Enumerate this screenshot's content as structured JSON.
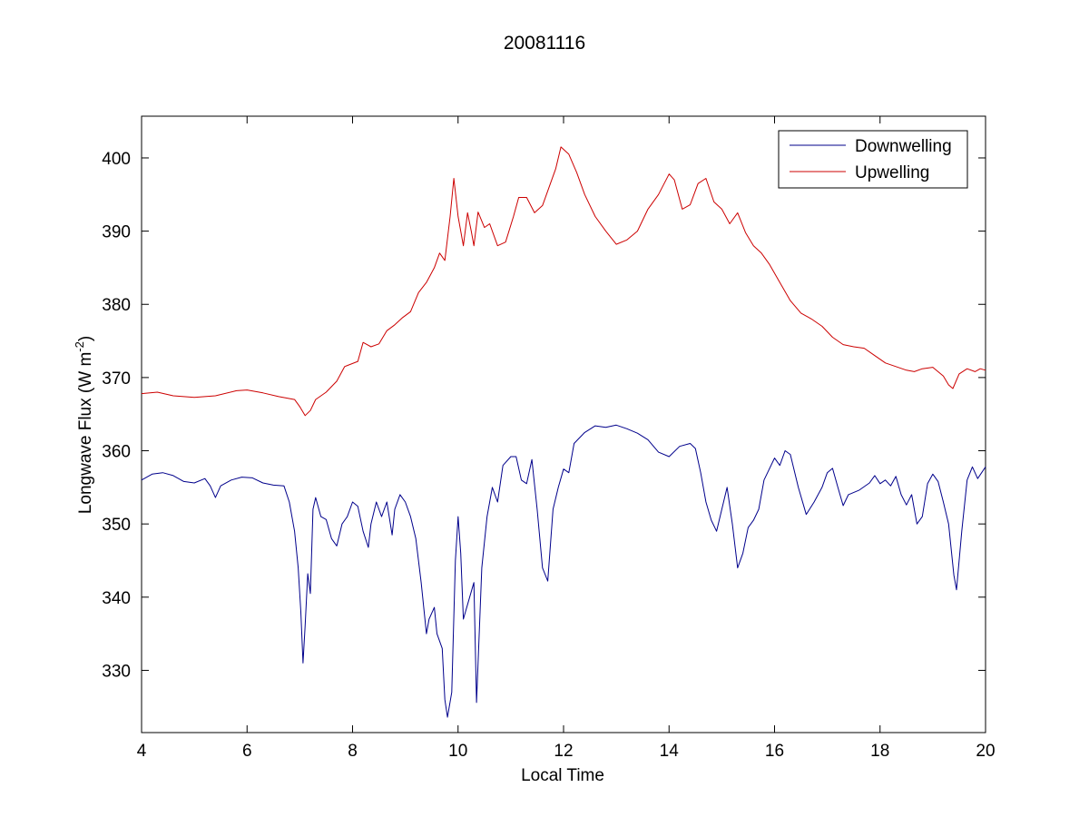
{
  "chart_data": {
    "type": "line",
    "title": "20081116",
    "xlabel": "Local Time",
    "ylabel_main": "Longwave Flux (W m",
    "ylabel_sup": "-2",
    "ylabel_close": ")",
    "xlim": [
      4,
      20
    ],
    "ylim": [
      321.5,
      405.7
    ],
    "xticks": [
      4,
      6,
      8,
      10,
      12,
      14,
      16,
      18,
      20
    ],
    "yticks": [
      330,
      340,
      350,
      360,
      370,
      380,
      390,
      400
    ],
    "grid": false,
    "legend_position": "top-right",
    "series": [
      {
        "name": "Downwelling",
        "color": "#00008b",
        "points": [
          [
            4.0,
            356
          ],
          [
            4.2,
            356.8
          ],
          [
            4.4,
            357
          ],
          [
            4.6,
            356.6
          ],
          [
            4.8,
            355.8
          ],
          [
            5.0,
            355.6
          ],
          [
            5.2,
            356.2
          ],
          [
            5.3,
            355.2
          ],
          [
            5.4,
            353.6
          ],
          [
            5.5,
            355.2
          ],
          [
            5.7,
            356
          ],
          [
            5.9,
            356.4
          ],
          [
            6.1,
            356.3
          ],
          [
            6.3,
            355.6
          ],
          [
            6.5,
            355.3
          ],
          [
            6.7,
            355.2
          ],
          [
            6.8,
            353
          ],
          [
            6.9,
            349
          ],
          [
            6.97,
            344
          ],
          [
            7.02,
            338
          ],
          [
            7.06,
            331
          ],
          [
            7.1,
            336
          ],
          [
            7.15,
            343.2
          ],
          [
            7.2,
            340.5
          ],
          [
            7.25,
            352
          ],
          [
            7.3,
            353.6
          ],
          [
            7.4,
            351
          ],
          [
            7.5,
            350.6
          ],
          [
            7.6,
            348
          ],
          [
            7.7,
            347
          ],
          [
            7.8,
            350
          ],
          [
            7.9,
            351
          ],
          [
            8.0,
            353
          ],
          [
            8.1,
            352.4
          ],
          [
            8.2,
            349
          ],
          [
            8.3,
            346.8
          ],
          [
            8.35,
            350
          ],
          [
            8.45,
            353
          ],
          [
            8.55,
            351
          ],
          [
            8.65,
            353
          ],
          [
            8.75,
            348.5
          ],
          [
            8.8,
            352
          ],
          [
            8.9,
            354
          ],
          [
            9.0,
            353
          ],
          [
            9.1,
            351
          ],
          [
            9.2,
            348
          ],
          [
            9.3,
            342
          ],
          [
            9.4,
            335
          ],
          [
            9.45,
            337
          ],
          [
            9.55,
            338.6
          ],
          [
            9.6,
            335
          ],
          [
            9.7,
            333
          ],
          [
            9.75,
            326
          ],
          [
            9.8,
            323.6
          ],
          [
            9.88,
            327
          ],
          [
            9.95,
            345
          ],
          [
            10.0,
            351
          ],
          [
            10.05,
            346
          ],
          [
            10.1,
            337
          ],
          [
            10.2,
            339.5
          ],
          [
            10.3,
            342
          ],
          [
            10.35,
            325.6
          ],
          [
            10.45,
            344
          ],
          [
            10.55,
            351
          ],
          [
            10.65,
            355
          ],
          [
            10.75,
            353
          ],
          [
            10.85,
            358
          ],
          [
            11.0,
            359.2
          ],
          [
            11.1,
            359.2
          ],
          [
            11.2,
            356
          ],
          [
            11.3,
            355.5
          ],
          [
            11.4,
            358.8
          ],
          [
            11.5,
            352
          ],
          [
            11.6,
            344
          ],
          [
            11.7,
            342.2
          ],
          [
            11.8,
            352
          ],
          [
            11.9,
            355
          ],
          [
            12.0,
            357.5
          ],
          [
            12.1,
            357
          ],
          [
            12.2,
            361
          ],
          [
            12.4,
            362.5
          ],
          [
            12.6,
            363.4
          ],
          [
            12.8,
            363.2
          ],
          [
            13.0,
            363.5
          ],
          [
            13.2,
            363
          ],
          [
            13.4,
            362.4
          ],
          [
            13.6,
            361.5
          ],
          [
            13.8,
            359.8
          ],
          [
            14.0,
            359.2
          ],
          [
            14.2,
            360.6
          ],
          [
            14.4,
            361
          ],
          [
            14.5,
            360.3
          ],
          [
            14.6,
            357
          ],
          [
            14.7,
            353
          ],
          [
            14.8,
            350.5
          ],
          [
            14.9,
            349
          ],
          [
            15.0,
            352
          ],
          [
            15.1,
            355
          ],
          [
            15.2,
            350
          ],
          [
            15.3,
            344
          ],
          [
            15.4,
            346
          ],
          [
            15.5,
            349.5
          ],
          [
            15.6,
            350.5
          ],
          [
            15.7,
            352
          ],
          [
            15.8,
            356
          ],
          [
            16.0,
            359
          ],
          [
            16.1,
            358
          ],
          [
            16.2,
            360
          ],
          [
            16.3,
            359.5
          ],
          [
            16.45,
            355
          ],
          [
            16.6,
            351.3
          ],
          [
            16.75,
            353
          ],
          [
            16.9,
            355
          ],
          [
            17.0,
            357
          ],
          [
            17.1,
            357.6
          ],
          [
            17.2,
            355
          ],
          [
            17.3,
            352.5
          ],
          [
            17.4,
            354
          ],
          [
            17.6,
            354.6
          ],
          [
            17.8,
            355.6
          ],
          [
            17.9,
            356.6
          ],
          [
            18.0,
            355.5
          ],
          [
            18.1,
            356
          ],
          [
            18.2,
            355.2
          ],
          [
            18.3,
            356.5
          ],
          [
            18.4,
            354
          ],
          [
            18.5,
            352.6
          ],
          [
            18.6,
            354
          ],
          [
            18.7,
            350
          ],
          [
            18.8,
            351
          ],
          [
            18.9,
            355.5
          ],
          [
            19.0,
            356.8
          ],
          [
            19.1,
            355.8
          ],
          [
            19.2,
            353
          ],
          [
            19.3,
            350
          ],
          [
            19.4,
            343
          ],
          [
            19.45,
            341
          ],
          [
            19.55,
            349
          ],
          [
            19.65,
            356
          ],
          [
            19.75,
            357.8
          ],
          [
            19.85,
            356.2
          ],
          [
            20.0,
            357.8
          ]
        ]
      },
      {
        "name": "Upwelling",
        "color": "#cc0000",
        "points": [
          [
            4.0,
            367.8
          ],
          [
            4.3,
            368
          ],
          [
            4.6,
            367.5
          ],
          [
            5.0,
            367.3
          ],
          [
            5.4,
            367.5
          ],
          [
            5.8,
            368.2
          ],
          [
            6.0,
            368.3
          ],
          [
            6.3,
            367.9
          ],
          [
            6.6,
            367.4
          ],
          [
            6.9,
            367
          ],
          [
            7.0,
            366
          ],
          [
            7.1,
            364.8
          ],
          [
            7.2,
            365.5
          ],
          [
            7.3,
            367
          ],
          [
            7.5,
            368
          ],
          [
            7.7,
            369.5
          ],
          [
            7.85,
            371.5
          ],
          [
            8.1,
            372.2
          ],
          [
            8.2,
            374.8
          ],
          [
            8.35,
            374.2
          ],
          [
            8.5,
            374.6
          ],
          [
            8.65,
            376.4
          ],
          [
            8.8,
            377.2
          ],
          [
            8.95,
            378.2
          ],
          [
            9.1,
            379
          ],
          [
            9.25,
            381.6
          ],
          [
            9.4,
            383
          ],
          [
            9.55,
            385
          ],
          [
            9.65,
            387
          ],
          [
            9.75,
            386
          ],
          [
            9.85,
            392
          ],
          [
            9.92,
            397.2
          ],
          [
            10.0,
            392
          ],
          [
            10.1,
            388
          ],
          [
            10.18,
            392.5
          ],
          [
            10.25,
            390
          ],
          [
            10.3,
            388
          ],
          [
            10.38,
            392.6
          ],
          [
            10.5,
            390.5
          ],
          [
            10.6,
            391
          ],
          [
            10.75,
            388
          ],
          [
            10.9,
            388.5
          ],
          [
            11.05,
            392
          ],
          [
            11.15,
            394.6
          ],
          [
            11.3,
            394.6
          ],
          [
            11.45,
            392.5
          ],
          [
            11.6,
            393.5
          ],
          [
            11.75,
            396.5
          ],
          [
            11.85,
            398.5
          ],
          [
            11.95,
            401.5
          ],
          [
            12.1,
            400.5
          ],
          [
            12.25,
            398
          ],
          [
            12.4,
            395
          ],
          [
            12.6,
            392
          ],
          [
            12.8,
            390
          ],
          [
            13.0,
            388.2
          ],
          [
            13.2,
            388.8
          ],
          [
            13.4,
            390
          ],
          [
            13.6,
            393
          ],
          [
            13.8,
            395
          ],
          [
            14.0,
            397.8
          ],
          [
            14.1,
            397
          ],
          [
            14.25,
            393
          ],
          [
            14.4,
            393.6
          ],
          [
            14.55,
            396.5
          ],
          [
            14.7,
            397.2
          ],
          [
            14.85,
            394
          ],
          [
            15.0,
            393
          ],
          [
            15.15,
            391
          ],
          [
            15.3,
            392.5
          ],
          [
            15.45,
            389.8
          ],
          [
            15.6,
            388
          ],
          [
            15.75,
            387
          ],
          [
            15.9,
            385.5
          ],
          [
            16.1,
            383
          ],
          [
            16.3,
            380.5
          ],
          [
            16.5,
            378.8
          ],
          [
            16.7,
            378
          ],
          [
            16.9,
            377
          ],
          [
            17.1,
            375.5
          ],
          [
            17.3,
            374.5
          ],
          [
            17.5,
            374.2
          ],
          [
            17.7,
            374
          ],
          [
            17.9,
            373
          ],
          [
            18.1,
            372
          ],
          [
            18.3,
            371.5
          ],
          [
            18.5,
            371
          ],
          [
            18.65,
            370.8
          ],
          [
            18.8,
            371.2
          ],
          [
            19.0,
            371.4
          ],
          [
            19.2,
            370.2
          ],
          [
            19.3,
            369
          ],
          [
            19.38,
            368.5
          ],
          [
            19.5,
            370.5
          ],
          [
            19.65,
            371.2
          ],
          [
            19.8,
            370.8
          ],
          [
            19.9,
            371.2
          ],
          [
            20.0,
            371
          ]
        ]
      }
    ]
  }
}
